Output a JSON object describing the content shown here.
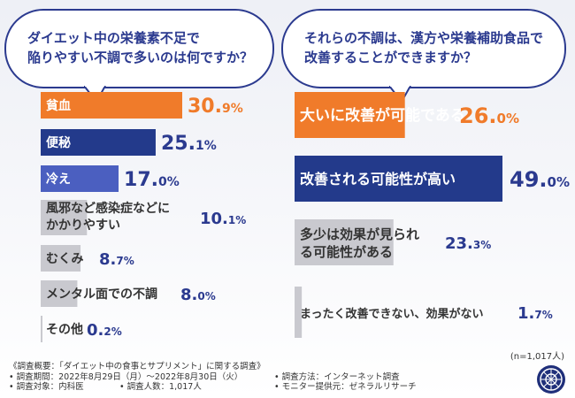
{
  "questions": {
    "left": [
      "ダイエット中の栄養素不足で",
      "陥りやすい不調で多いのは何ですか？"
    ],
    "right": [
      "それらの不調は、漢方や栄養補助食品で",
      "改善することができますか？"
    ]
  },
  "colors": {
    "orange": "#f07b2a",
    "navy": "#233a8b",
    "blue": "#4b5fc0",
    "gray": "#c9c9cf",
    "number": "#2b3a8f",
    "number_orange": "#f07b2a"
  },
  "chart_data": [
    {
      "type": "bar",
      "orientation": "horizontal",
      "categories": [
        "貧血",
        "便秘",
        "冷え",
        "風邪など感染症などにかかりやすい",
        "むくみ",
        "メンタル面での不調",
        "その他"
      ],
      "values": [
        30.9,
        25.1,
        17.0,
        10.1,
        8.7,
        8.0,
        0.2
      ],
      "unit": "%"
    },
    {
      "type": "bar",
      "orientation": "horizontal",
      "categories": [
        "大いに改善が可能である",
        "改善される可能性が高い",
        "多少は効果が見られる可能性がある",
        "まったく改善できない、効果がない"
      ],
      "values": [
        26.0,
        49.0,
        23.3,
        1.7
      ],
      "unit": "%",
      "note": "(n=1,017人)"
    }
  ],
  "sample_size": "(n=1,017人)",
  "footer": {
    "title": "《調査概要：「ダイエット中の食事とサプリメント」に関する調査》",
    "period": "• 調査期間：2022年8月29日（月）～2022年8月30日（火）",
    "method": "• 調査方法：インターネット調査",
    "target": "• 調査対象：内科医",
    "count": "• 調査人数：1,017人",
    "provider": "• モニター提供元：ゼネラルリサーチ"
  }
}
